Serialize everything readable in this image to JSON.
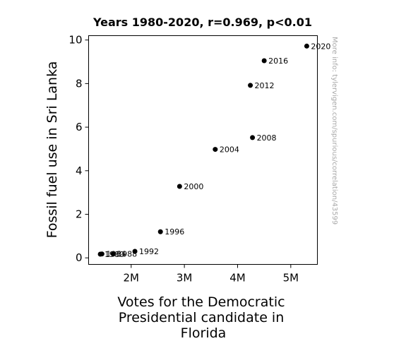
{
  "chart_data": {
    "type": "scatter",
    "title": "Years 1980-2020, r=0.969, p<0.01",
    "xlabel": "Votes for the Democratic Presidential candidate in Florida",
    "xlabel_lines": [
      "Votes for the Democratic",
      "Presidential candidate in",
      "Florida"
    ],
    "ylabel": "Fossil fuel use in Sri Lanka",
    "xlim": [
      1200000,
      5500000
    ],
    "ylim": [
      -0.3,
      10.2
    ],
    "xticks": [
      2000000,
      3000000,
      4000000,
      5000000
    ],
    "xtick_labels": [
      "2M",
      "3M",
      "4M",
      "5M"
    ],
    "yticks": [
      0,
      2,
      4,
      6,
      8,
      10
    ],
    "ytick_labels": [
      "0",
      "2",
      "4",
      "6",
      "8",
      "10"
    ],
    "grid": false,
    "marker_color": "#000000",
    "points": [
      {
        "label": "1980",
        "x": 1420000,
        "y": 0.17
      },
      {
        "label": "1984",
        "x": 1450000,
        "y": 0.18
      },
      {
        "label": "1988",
        "x": 1660000,
        "y": 0.18
      },
      {
        "label": "1992",
        "x": 2070000,
        "y": 0.3
      },
      {
        "label": "1996",
        "x": 2550000,
        "y": 1.2
      },
      {
        "label": "2000",
        "x": 2910000,
        "y": 3.28
      },
      {
        "label": "2004",
        "x": 3580000,
        "y": 4.98
      },
      {
        "label": "2008",
        "x": 4280000,
        "y": 5.52
      },
      {
        "label": "2012",
        "x": 4240000,
        "y": 7.92
      },
      {
        "label": "2016",
        "x": 4500000,
        "y": 9.05
      },
      {
        "label": "2020",
        "x": 5300000,
        "y": 9.72
      }
    ]
  },
  "watermark": "More info: tylervigen.com/spurious/correlation/43599"
}
